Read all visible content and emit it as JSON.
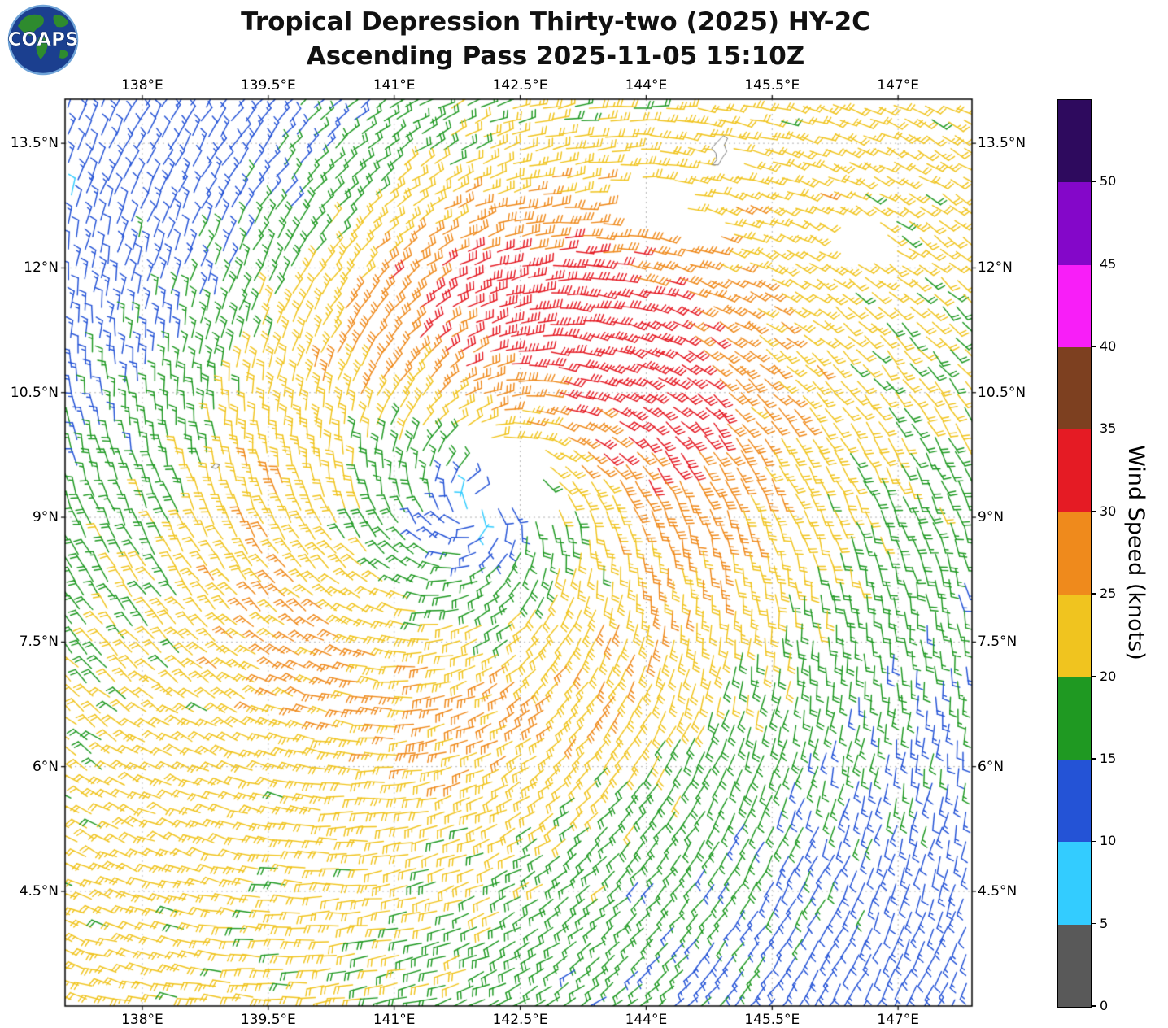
{
  "header": {
    "logo_text": "COAPS"
  },
  "chart_data": {
    "type": "wind_barb_map",
    "title": "Tropical Depression Thirty-two (2025) HY-2C",
    "subtitle": "Ascending Pass 2025-11-05 15:10Z",
    "storm": {
      "name": "Tropical Depression Thirty-two",
      "year": "2025",
      "satellite": "HY-2C",
      "pass_type": "Ascending",
      "pass_time": "2025-11-05 15:10Z"
    },
    "lon_range": [
      137.08,
      147.88
    ],
    "lat_range": [
      3.12,
      14.03
    ],
    "grid": true,
    "x_ticks": [
      {
        "value": 138.0,
        "label": "138°E"
      },
      {
        "value": 139.5,
        "label": "139.5°E"
      },
      {
        "value": 141.0,
        "label": "141°E"
      },
      {
        "value": 142.5,
        "label": "142.5°E"
      },
      {
        "value": 144.0,
        "label": "144°E"
      },
      {
        "value": 145.5,
        "label": "145.5°E"
      },
      {
        "value": 147.0,
        "label": "147°E"
      }
    ],
    "y_ticks": [
      {
        "value": 13.5,
        "label": "13.5°N"
      },
      {
        "value": 12.0,
        "label": "12°N"
      },
      {
        "value": 10.5,
        "label": "10.5°N"
      },
      {
        "value": 9.0,
        "label": "9°N"
      },
      {
        "value": 7.5,
        "label": "7.5°N"
      },
      {
        "value": 6.0,
        "label": "6°N"
      },
      {
        "value": 4.5,
        "label": "4.5°N"
      }
    ],
    "colorbar": {
      "label": "Wind Speed (knots)",
      "units": "knots",
      "min": 0,
      "max": 55,
      "tick_values": [
        0,
        5,
        10,
        15,
        20,
        25,
        30,
        35,
        40,
        45,
        50
      ],
      "bins": [
        {
          "min": 0,
          "max": 5,
          "color": "#595959"
        },
        {
          "min": 5,
          "max": 10,
          "color": "#33ccff"
        },
        {
          "min": 10,
          "max": 15,
          "color": "#2453d6"
        },
        {
          "min": 15,
          "max": 20,
          "color": "#1f9922"
        },
        {
          "min": 20,
          "max": 25,
          "color": "#f0c41f"
        },
        {
          "min": 25,
          "max": 30,
          "color": "#ef8a1c"
        },
        {
          "min": 30,
          "max": 35,
          "color": "#e51b24"
        },
        {
          "min": 35,
          "max": 40,
          "color": "#7d4020"
        },
        {
          "min": 40,
          "max": 45,
          "color": "#f81ef8"
        },
        {
          "min": 45,
          "max": 50,
          "color": "#8407c9"
        },
        {
          "min": 50,
          "max": 55,
          "color": "#2e0a5e"
        }
      ]
    },
    "wind_field_model": {
      "center_lon": 142.0,
      "center_lat": 9.1,
      "rotation": "cyclonic_counterclockwise",
      "inflow_deg": 22,
      "background_knots": 8,
      "far_field_knots": 14,
      "radius_scale_deg": 1.0,
      "ring_amp_knots": 5,
      "ring_radius_deg": 2.5,
      "ring_width_deg": 0.8,
      "lobes": [
        {
          "amp": 9,
          "r0": 2.3,
          "rw": 1.3,
          "dir": 65,
          "pow": 1.2
        },
        {
          "amp": -10,
          "r0": 5.8,
          "rw": 2.2,
          "dir": 138,
          "pow": 2
        },
        {
          "amp": -9,
          "r0": 7.2,
          "rw": 2.4,
          "dir": -42,
          "pow": 2
        }
      ],
      "noise_amp_knots": 1.5,
      "min_speed_knots": 4,
      "max_speed_knots": 34,
      "barb_convention": "full_barb_10kt_half_barb_5kt"
    },
    "data_gaps": [
      {
        "lon": 142.3,
        "lat": 9.55,
        "rx": 0.42,
        "ry": 0.34
      },
      {
        "lon": 141.9,
        "lat": 9.8,
        "rx": 0.25,
        "ry": 0.2
      },
      {
        "lon": 142.7,
        "lat": 9.15,
        "rx": 0.25,
        "ry": 0.2
      },
      {
        "lon": 143.95,
        "lat": 12.8,
        "rx": 0.5,
        "ry": 0.28
      },
      {
        "lon": 144.5,
        "lat": 12.45,
        "rx": 0.35,
        "ry": 0.22
      },
      {
        "lon": 146.45,
        "lat": 12.35,
        "rx": 0.42,
        "ry": 0.3
      },
      {
        "lon": 144.88,
        "lat": 13.42,
        "rx": 0.16,
        "ry": 0.22
      }
    ],
    "islands": [
      {
        "name": "guam",
        "points": [
          [
            144.79,
            13.24
          ],
          [
            144.84,
            13.3
          ],
          [
            144.83,
            13.38
          ],
          [
            144.78,
            13.44
          ],
          [
            144.85,
            13.52
          ],
          [
            144.92,
            13.59
          ],
          [
            144.97,
            13.56
          ],
          [
            144.93,
            13.48
          ],
          [
            144.96,
            13.4
          ],
          [
            144.91,
            13.33
          ],
          [
            144.86,
            13.24
          ],
          [
            144.79,
            13.24
          ]
        ]
      },
      {
        "name": "small-island-west",
        "points": [
          [
            138.83,
            9.6
          ],
          [
            138.87,
            9.645
          ],
          [
            138.92,
            9.63
          ],
          [
            138.88,
            9.585
          ],
          [
            138.83,
            9.6
          ]
        ]
      }
    ]
  }
}
